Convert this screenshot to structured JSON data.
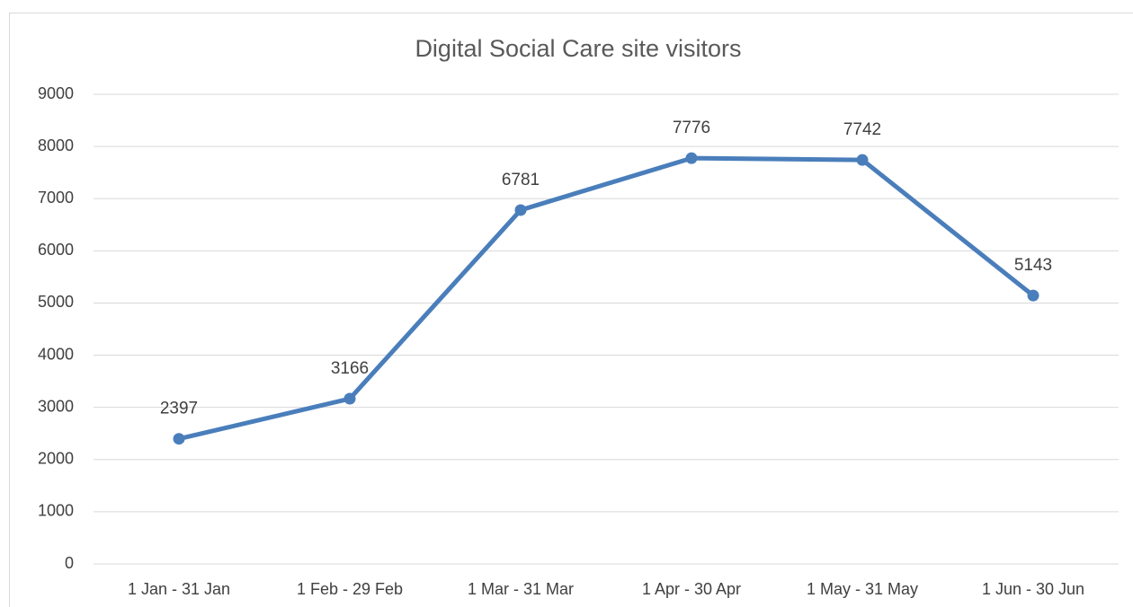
{
  "chart_data": {
    "type": "line",
    "title": "Digital Social Care site visitors",
    "categories": [
      "1 Jan - 31 Jan",
      "1 Feb - 29 Feb",
      "1 Mar - 31 Mar",
      "1 Apr - 30 Apr",
      "1 May - 31 May",
      "1 Jun - 30 Jun"
    ],
    "series": [
      {
        "name": "Visitors",
        "color": "#4a7ebb",
        "values": [
          2397,
          3166,
          6781,
          7776,
          7742,
          5143
        ]
      }
    ],
    "ylim": [
      0,
      9000
    ],
    "yticks": [
      0,
      1000,
      2000,
      3000,
      4000,
      5000,
      6000,
      7000,
      8000,
      9000
    ],
    "grid": true
  }
}
